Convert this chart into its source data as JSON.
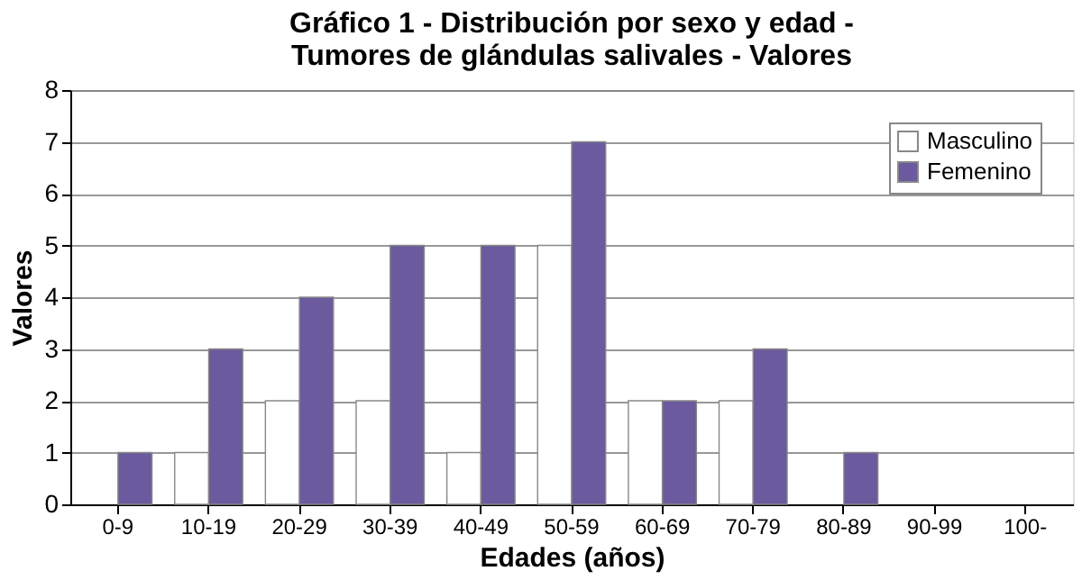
{
  "chart_data": {
    "type": "bar",
    "title": "Gráfico 1 - Distribución por sexo y edad -\nTumores de glándulas salivales - Valores",
    "xlabel": "Edades (años)",
    "ylabel": "Valores",
    "categories": [
      "0-9",
      "10-19",
      "20-29",
      "30-39",
      "40-49",
      "50-59",
      "60-69",
      "70-79",
      "80-89",
      "90-99",
      "100-"
    ],
    "series": [
      {
        "name": "Masculino",
        "color": "#ffffff",
        "values": [
          0,
          1,
          2,
          2,
          1,
          5,
          2,
          2,
          0,
          0,
          0
        ]
      },
      {
        "name": "Femenino",
        "color": "#6b5a9e",
        "values": [
          1,
          3,
          4,
          5,
          5,
          7,
          2,
          3,
          1,
          0,
          0
        ]
      }
    ],
    "ylim": [
      0,
      8
    ],
    "yticks": [
      0,
      1,
      2,
      3,
      4,
      5,
      6,
      7,
      8
    ],
    "grid": "y",
    "legend": "top right"
  }
}
